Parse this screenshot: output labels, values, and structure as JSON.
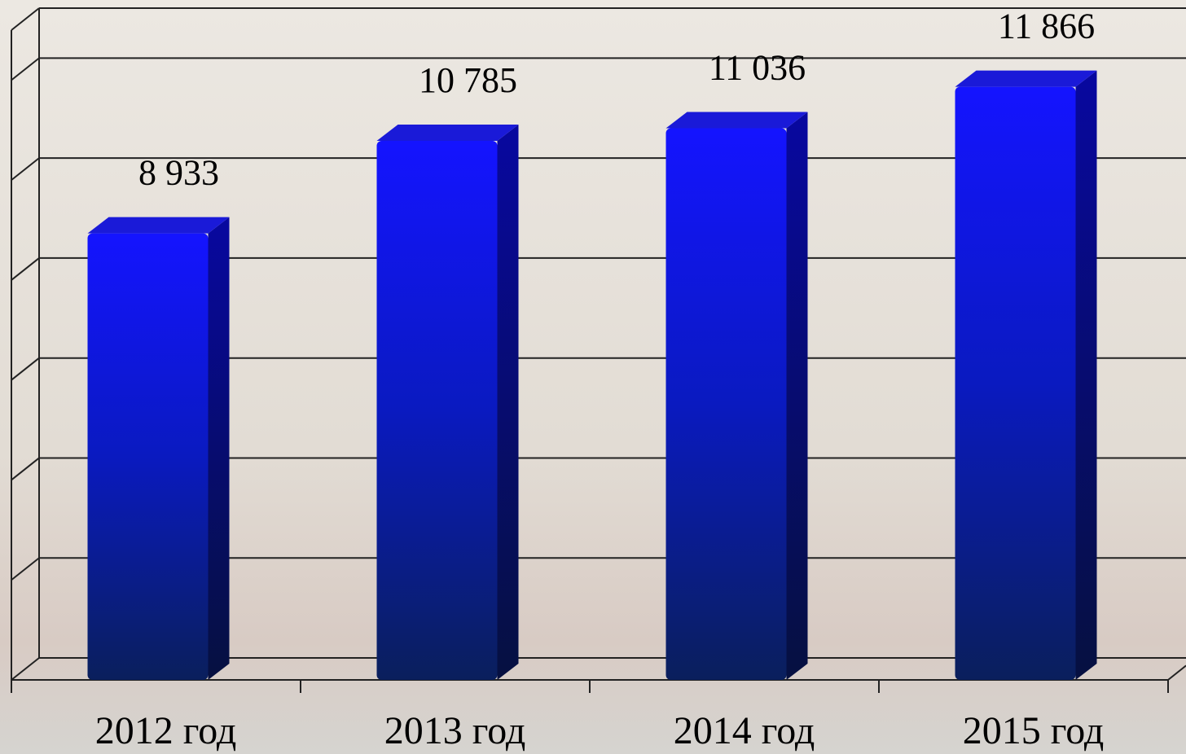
{
  "chart_data": {
    "type": "bar",
    "categories": [
      "2012 год",
      "2013 год",
      "2014 год",
      "2015 год"
    ],
    "values": [
      8933,
      10785,
      11036,
      11866
    ],
    "value_labels": [
      "8 933",
      "10 785",
      "11 036",
      "11 866"
    ],
    "color": "#0a0ae8",
    "ylim": [
      0,
      13000
    ],
    "yticks": [
      0,
      2000,
      4000,
      6000,
      8000,
      10000,
      12000
    ],
    "grid": true
  }
}
